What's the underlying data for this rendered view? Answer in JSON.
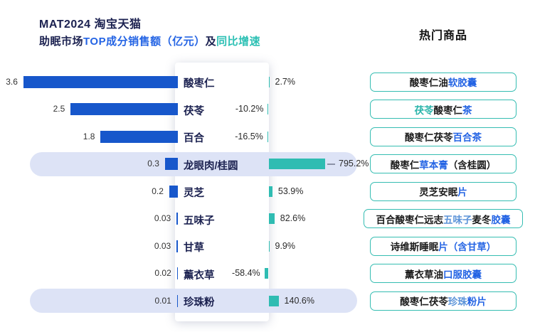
{
  "title": {
    "line1": "MAT2024 淘宝天猫",
    "line1_color": "#1b2150",
    "line2_segments": [
      {
        "text": "助眠市场",
        "color": "#1b2150"
      },
      {
        "text": "TOP成分销售额（亿元）",
        "color": "#2464e4"
      },
      {
        "text": "及",
        "color": "#1b2150"
      },
      {
        "text": "同比增速",
        "color": "#2cc0b4"
      }
    ]
  },
  "right_panel": {
    "header": "热门商品",
    "products": [
      {
        "segments": [
          {
            "text": "酸枣仁油",
            "color": "#1a1a1a"
          },
          {
            "text": "软胶囊",
            "color": "#2464e4"
          }
        ]
      },
      {
        "segments": [
          {
            "text": "茯苓",
            "color": "#2cb5ab"
          },
          {
            "text": "酸枣仁",
            "color": "#1a1a1a"
          },
          {
            "text": "茶",
            "color": "#2464e4"
          }
        ]
      },
      {
        "segments": [
          {
            "text": "酸枣仁茯苓",
            "color": "#1a1a1a"
          },
          {
            "text": "百合茶",
            "color": "#2464e4"
          }
        ]
      },
      {
        "segments": [
          {
            "text": "酸枣仁",
            "color": "#1a1a1a"
          },
          {
            "text": "草本膏",
            "color": "#2464e4"
          },
          {
            "text": "（含桂圆）",
            "color": "#1a1a1a"
          }
        ]
      },
      {
        "segments": [
          {
            "text": "灵芝安眠",
            "color": "#1a1a1a"
          },
          {
            "text": "片",
            "color": "#2464e4"
          }
        ]
      },
      {
        "segments": [
          {
            "text": "百合酸枣仁远志",
            "color": "#1a1a1a"
          },
          {
            "text": "五味子",
            "color": "#5b93d8"
          },
          {
            "text": "麦冬",
            "color": "#1a1a1a"
          },
          {
            "text": "胶囊",
            "color": "#2464e4"
          }
        ]
      },
      {
        "segments": [
          {
            "text": "诗维斯睡眠",
            "color": "#1a1a1a"
          },
          {
            "text": "片",
            "color": "#2464e4"
          },
          {
            "text": "（含甘草）",
            "color": "#2464e4"
          }
        ]
      },
      {
        "segments": [
          {
            "text": "薰衣草油",
            "color": "#1a1a1a"
          },
          {
            "text": "口服胶囊",
            "color": "#2464e4"
          }
        ]
      },
      {
        "segments": [
          {
            "text": "酸枣仁茯苓",
            "color": "#1a1a1a"
          },
          {
            "text": "珍珠",
            "color": "#5b93d8"
          },
          {
            "text": "粉片",
            "color": "#2464e4"
          }
        ]
      }
    ]
  },
  "chart_data": {
    "type": "bar",
    "orientation": "horizontal",
    "title": "MAT2024 淘宝天猫 助眠市场TOP成分销售额（亿元）及同比增速",
    "categories": [
      "酸枣仁",
      "茯苓",
      "百合",
      "龙眼肉/桂圆",
      "灵芝",
      "五味子",
      "甘草",
      "薰衣草",
      "珍珠粉"
    ],
    "series": [
      {
        "name": "销售额（亿元）",
        "values": [
          3.6,
          2.5,
          1.8,
          0.3,
          0.2,
          0.03,
          0.03,
          0.02,
          0.01
        ]
      },
      {
        "name": "同比增速（%）",
        "values": [
          2.7,
          -10.2,
          -16.5,
          795.2,
          53.9,
          82.6,
          9.9,
          -58.4,
          140.6
        ]
      }
    ],
    "sales_value_labels": [
      "3.6",
      "2.5",
      "1.8",
      "0.3",
      "0.2",
      "0.03",
      "0.03",
      "0.02",
      "0.01"
    ],
    "growth_value_labels": [
      "2.7%",
      "-10.2%",
      "-16.5%",
      "795.2%",
      "53.9%",
      "82.6%",
      "9.9%",
      "-58.4%",
      "140.6%"
    ],
    "highlighted_rows": [
      3,
      8
    ],
    "legend_position": "none",
    "grid": false,
    "colors": {
      "sales_bar": "#1757cb",
      "growth_bar": "#2fbcb2",
      "highlight_band": "#dde3f6",
      "axis_line": "#d9d9d9"
    }
  }
}
